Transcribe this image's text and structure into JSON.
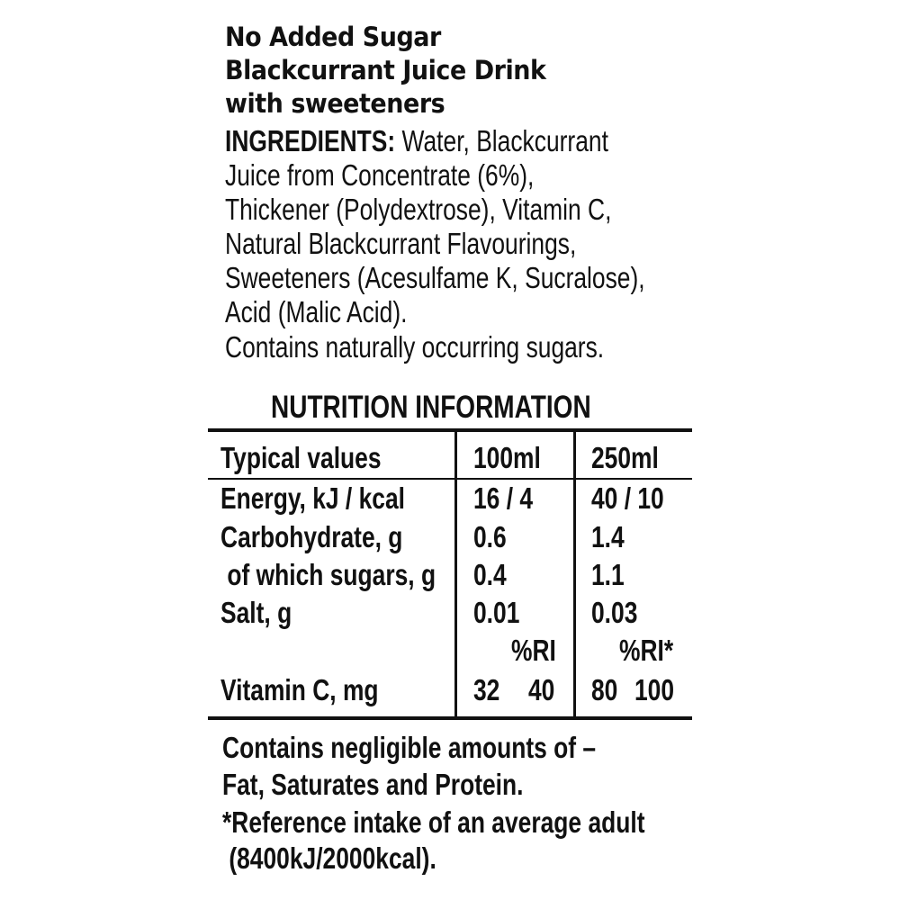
{
  "title_lines": [
    "No Added Sugar",
    "Blackcurrant Juice Drink",
    "with sweeteners"
  ],
  "ingredients": {
    "label": "INGREDIENTS:",
    "lines": [
      "Water, Blackcurrant",
      "Juice from Concentrate (6%),",
      "Thickener (Polydextrose), Vitamin C,",
      "Natural Blackcurrant Flavourings,",
      "Sweeteners (Acesulfame K, Sucralose),",
      "Acid (Malic Acid).",
      "Contains naturally occurring sugars."
    ]
  },
  "nutrition": {
    "heading": "NUTRITION INFORMATION",
    "header": [
      "Typical values",
      "100ml",
      "250ml"
    ],
    "rows": [
      [
        "Energy, kJ / kcal",
        "16 / 4",
        "40 / 10"
      ],
      [
        "Carbohydrate, g",
        "0.6",
        "1.4"
      ],
      [
        " of which sugars, g",
        "0.4",
        "1.1"
      ],
      [
        "Salt, g",
        "0.01",
        "0.03"
      ]
    ],
    "ri_labels": [
      "%RI",
      "%RI*"
    ],
    "vitamin_c": {
      "label": "Vitamin C, mg",
      "v100": "32",
      "ri100": "40",
      "v250": "80",
      "ri250": "100"
    }
  },
  "footer_lines": [
    "Contains negligible amounts of –",
    "Fat, Saturates and Protein.",
    "*Reference intake of an average adult",
    " (8400kJ/2000kcal)."
  ]
}
